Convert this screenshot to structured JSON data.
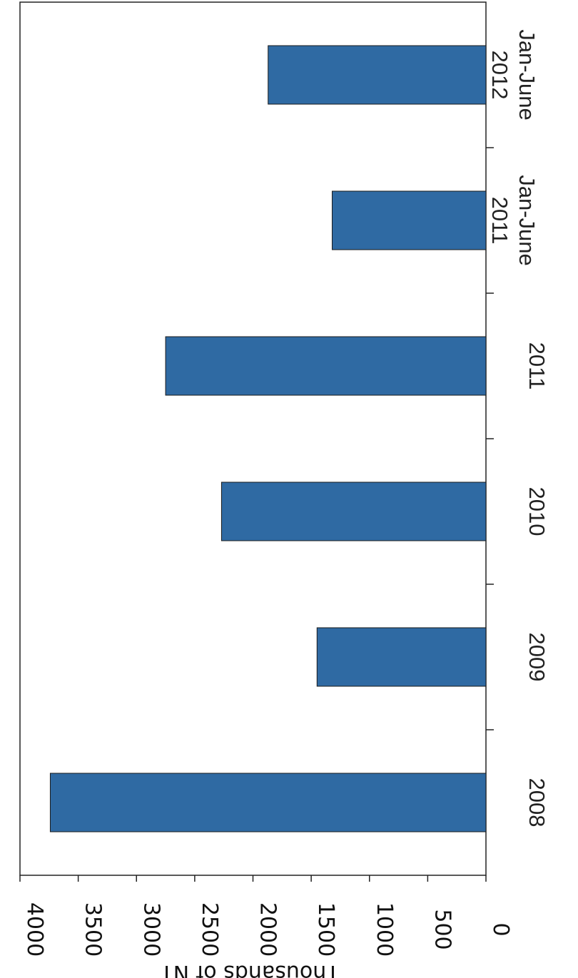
{
  "chart_data": {
    "type": "bar",
    "orientation": "vertical bars, page rotated 90 degrees clockwise",
    "categories": [
      [
        "2008"
      ],
      [
        "2009"
      ],
      [
        "2010"
      ],
      [
        "2011"
      ],
      [
        "Jan-June",
        "2011"
      ],
      [
        "Jan-June",
        "2012"
      ]
    ],
    "values": [
      3740,
      1450,
      2270,
      2750,
      1320,
      1870
    ],
    "ylabel": "Thousands of NT",
    "ylim": [
      0,
      4000
    ],
    "yticks": [
      "0",
      "500",
      "1000",
      "1500",
      "2000",
      "2500",
      "3000",
      "3500",
      "4000"
    ],
    "colors": {
      "bar": "#2f6aa3",
      "bar_border": "#1a1a1a",
      "axis": "#222222"
    },
    "grid": false,
    "legend": "none"
  }
}
